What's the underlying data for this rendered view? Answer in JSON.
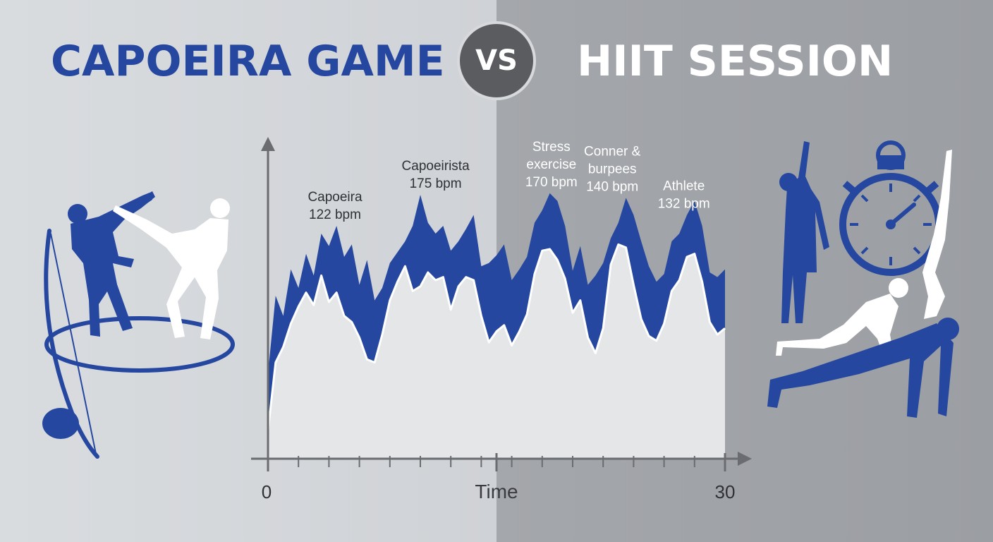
{
  "header": {
    "left_title": "CAPOEIRA GAME",
    "vs_label": "VS",
    "right_title": "HIIT SESSION"
  },
  "colors": {
    "accent_blue": "#2547a0",
    "bg_left": "#d6d9dc",
    "bg_right": "#a0a3a7",
    "fill_light": "#e4e6e8",
    "badge": "#5a5c60"
  },
  "icons": [
    "capoeira-fighters-icon",
    "berimbau-icon",
    "stopwatch-icon",
    "hiit-exercisers-icon"
  ],
  "chart_data": {
    "type": "area",
    "title": "",
    "xlabel": "Time",
    "ylabel": "",
    "x_tick_labels": [
      "0",
      "30"
    ],
    "xlim": [
      0,
      30
    ],
    "ylim": [
      0,
      200
    ],
    "series": [
      {
        "role": "upper-band",
        "color": "#2547a0",
        "x": [
          0,
          0.5,
          1,
          1.5,
          2,
          2.5,
          3,
          3.5,
          4,
          4.5,
          5,
          5.5,
          6,
          6.5,
          7,
          7.5,
          8,
          8.5,
          9,
          9.5,
          10,
          10.5,
          11,
          11.5,
          12,
          12.5,
          13,
          13.5,
          14,
          14.5,
          15,
          15.5,
          16,
          16.5,
          17,
          17.5,
          18,
          18.5,
          19,
          19.5,
          20,
          20.5,
          21,
          21.5,
          22,
          22.5,
          23,
          23.5,
          24,
          24.5,
          25,
          25.5,
          26,
          26.5,
          27,
          27.5,
          28,
          28.5,
          29,
          29.5,
          30
        ],
        "values": [
          55,
          105,
          92,
          122,
          110,
          132,
          118,
          145,
          137,
          150,
          130,
          138,
          112,
          128,
          102,
          110,
          126,
          133,
          140,
          150,
          170,
          152,
          145,
          150,
          134,
          140,
          148,
          157,
          124,
          126,
          131,
          138,
          115,
          122,
          130,
          152,
          160,
          171,
          166,
          150,
          121,
          137,
          112,
          118,
          126,
          142,
          152,
          168,
          157,
          140,
          124,
          114,
          119,
          140,
          145,
          157,
          166,
          150,
          120,
          117,
          122
        ]
      },
      {
        "role": "lower-band",
        "color": "#ffffff",
        "x": [
          0,
          0.5,
          1,
          1.5,
          2,
          2.5,
          3,
          3.5,
          4,
          4.5,
          5,
          5.5,
          6,
          6.5,
          7,
          7.5,
          8,
          8.5,
          9,
          9.5,
          10,
          10.5,
          11,
          11.5,
          12,
          12.5,
          13,
          13.5,
          14,
          14.5,
          15,
          15.5,
          16,
          16.5,
          17,
          17.5,
          18,
          18.5,
          19,
          19.5,
          20,
          20.5,
          21,
          21.5,
          22,
          22.5,
          23,
          23.5,
          24,
          24.5,
          25,
          25.5,
          26,
          26.5,
          27,
          27.5,
          28,
          28.5,
          29,
          29.5,
          30
        ],
        "values": [
          18,
          62,
          72,
          87,
          98,
          107,
          99,
          118,
          101,
          107,
          92,
          88,
          78,
          64,
          62,
          80,
          102,
          114,
          124,
          108,
          111,
          120,
          115,
          117,
          96,
          111,
          117,
          115,
          92,
          75,
          82,
          86,
          73,
          82,
          93,
          119,
          134,
          135,
          128,
          116,
          94,
          102,
          78,
          68,
          84,
          125,
          138,
          136,
          112,
          90,
          79,
          76,
          87,
          108,
          115,
          130,
          132,
          114,
          88,
          80,
          84
        ]
      }
    ],
    "annotations": [
      {
        "lines": [
          "Capoeira",
          "122 bpm"
        ],
        "x": 4.4,
        "y": 150
      },
      {
        "lines": [
          "Capoeirista",
          "175 bpm"
        ],
        "x": 11.0,
        "y": 170
      },
      {
        "lines": [
          "Stress",
          "exercise",
          "170 bpm"
        ],
        "x": 18.6,
        "y": 171
      },
      {
        "lines": [
          "Conner &",
          "burpees",
          "140 bpm"
        ],
        "x": 22.6,
        "y": 168
      },
      {
        "lines": [
          "Athlete",
          "132 bpm"
        ],
        "x": 27.3,
        "y": 157
      }
    ],
    "grid": false,
    "legend": "none"
  }
}
